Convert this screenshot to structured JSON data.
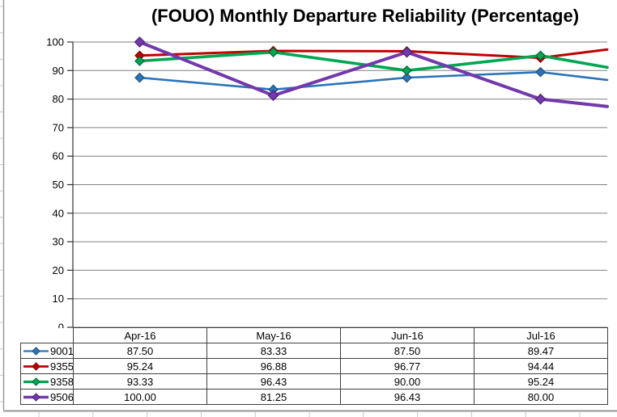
{
  "chart_data": {
    "type": "line",
    "title": "(FOUO) Monthly Departure Reliability (Percentage)",
    "categories": [
      "Apr-16",
      "May-16",
      "Jun-16",
      "Jul-16"
    ],
    "series": [
      {
        "name": "9001",
        "color": "#2B74B9",
        "dark_color": "#1F4E79",
        "values": [
          "87.50",
          "83.33",
          "87.50",
          "89.47"
        ],
        "value_at_plot_right_edge": 86.7
      },
      {
        "name": "9355",
        "color": "#C00000",
        "dark_color": "#7F0000",
        "values": [
          "95.24",
          "96.88",
          "96.77",
          "94.44"
        ],
        "value_at_plot_right_edge": 97.4
      },
      {
        "name": "9358",
        "color": "#00A651",
        "dark_color": "#006837",
        "values": [
          "93.33",
          "96.43",
          "90.00",
          "95.24"
        ],
        "value_at_plot_right_edge": 91.1
      },
      {
        "name": "9506",
        "color": "#7339AC",
        "dark_color": "#4B2273",
        "values": [
          "100.00",
          "81.25",
          "96.43",
          "80.00"
        ],
        "value_at_plot_right_edge": 77.4
      }
    ],
    "y_axis": {
      "min": 0,
      "max": 100,
      "step": 10,
      "tick_labels": [
        "0",
        "10",
        "20",
        "30",
        "40",
        "50",
        "60",
        "70",
        "80",
        "90",
        "100"
      ]
    },
    "grid": true,
    "legend_position": "data-table-left-column",
    "marker_shape": "diamond"
  },
  "colors": {
    "background": "#FFFFFF",
    "title_text": "#000000",
    "gridline": "#808080",
    "axis": "#303030",
    "table_border": "#404040",
    "spreadsheet_gridline": "#C8C8C8",
    "chart_object_border": "#949494"
  }
}
